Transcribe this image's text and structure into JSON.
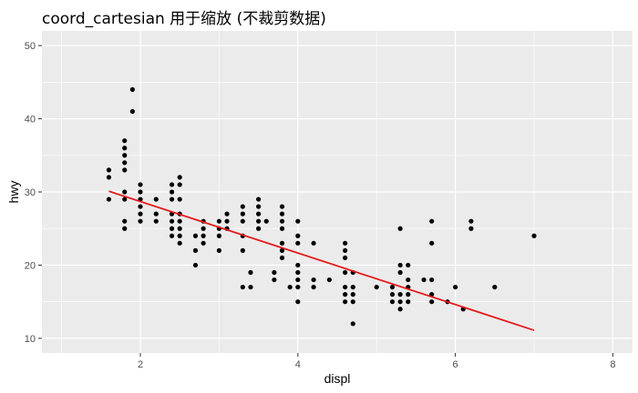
{
  "chart_data": {
    "type": "scatter",
    "title": "coord_cartesian 用于缩放 (不裁剪数据)",
    "xlabel": "displ",
    "ylabel": "hwy",
    "xlim": [
      0.75,
      8.25
    ],
    "ylim": [
      8,
      52
    ],
    "x_ticks": [
      2,
      4,
      6,
      8
    ],
    "y_ticks": [
      10,
      20,
      30,
      40,
      50
    ],
    "x_minor": [
      1,
      3,
      5,
      7
    ],
    "y_minor": [
      15,
      25,
      35,
      45
    ],
    "grid": true,
    "legend": "none",
    "point_color": "#000000",
    "panel_color": "#ebebeb",
    "grid_color": "#ffffff",
    "points": [
      {
        "x": 1.6,
        "y": 33
      },
      {
        "x": 1.6,
        "y": 32
      },
      {
        "x": 1.6,
        "y": 29
      },
      {
        "x": 1.8,
        "y": 37
      },
      {
        "x": 1.8,
        "y": 36
      },
      {
        "x": 1.8,
        "y": 35
      },
      {
        "x": 1.8,
        "y": 34
      },
      {
        "x": 1.8,
        "y": 33
      },
      {
        "x": 1.8,
        "y": 30
      },
      {
        "x": 1.8,
        "y": 29
      },
      {
        "x": 1.8,
        "y": 26
      },
      {
        "x": 1.8,
        "y": 25
      },
      {
        "x": 1.9,
        "y": 44
      },
      {
        "x": 1.9,
        "y": 41
      },
      {
        "x": 2.0,
        "y": 31
      },
      {
        "x": 2.0,
        "y": 30
      },
      {
        "x": 2.0,
        "y": 29
      },
      {
        "x": 2.0,
        "y": 28
      },
      {
        "x": 2.0,
        "y": 27
      },
      {
        "x": 2.0,
        "y": 26
      },
      {
        "x": 2.2,
        "y": 29
      },
      {
        "x": 2.2,
        "y": 27
      },
      {
        "x": 2.2,
        "y": 26
      },
      {
        "x": 2.4,
        "y": 31
      },
      {
        "x": 2.4,
        "y": 30
      },
      {
        "x": 2.4,
        "y": 29
      },
      {
        "x": 2.4,
        "y": 27
      },
      {
        "x": 2.4,
        "y": 26
      },
      {
        "x": 2.4,
        "y": 25
      },
      {
        "x": 2.4,
        "y": 24
      },
      {
        "x": 2.5,
        "y": 32
      },
      {
        "x": 2.5,
        "y": 31
      },
      {
        "x": 2.5,
        "y": 29
      },
      {
        "x": 2.5,
        "y": 27
      },
      {
        "x": 2.5,
        "y": 26
      },
      {
        "x": 2.5,
        "y": 25
      },
      {
        "x": 2.5,
        "y": 24
      },
      {
        "x": 2.5,
        "y": 23
      },
      {
        "x": 2.7,
        "y": 24
      },
      {
        "x": 2.7,
        "y": 22
      },
      {
        "x": 2.7,
        "y": 20
      },
      {
        "x": 2.8,
        "y": 26
      },
      {
        "x": 2.8,
        "y": 25
      },
      {
        "x": 2.8,
        "y": 24
      },
      {
        "x": 2.8,
        "y": 23
      },
      {
        "x": 3.0,
        "y": 26
      },
      {
        "x": 3.0,
        "y": 25
      },
      {
        "x": 3.0,
        "y": 24
      },
      {
        "x": 3.0,
        "y": 22
      },
      {
        "x": 3.1,
        "y": 27
      },
      {
        "x": 3.1,
        "y": 26
      },
      {
        "x": 3.1,
        "y": 25
      },
      {
        "x": 3.3,
        "y": 28
      },
      {
        "x": 3.3,
        "y": 27
      },
      {
        "x": 3.3,
        "y": 26
      },
      {
        "x": 3.3,
        "y": 24
      },
      {
        "x": 3.3,
        "y": 22
      },
      {
        "x": 3.3,
        "y": 17
      },
      {
        "x": 3.4,
        "y": 19
      },
      {
        "x": 3.4,
        "y": 17
      },
      {
        "x": 3.5,
        "y": 29
      },
      {
        "x": 3.5,
        "y": 28
      },
      {
        "x": 3.5,
        "y": 27
      },
      {
        "x": 3.5,
        "y": 26
      },
      {
        "x": 3.5,
        "y": 25
      },
      {
        "x": 3.6,
        "y": 26
      },
      {
        "x": 3.7,
        "y": 19
      },
      {
        "x": 3.7,
        "y": 18
      },
      {
        "x": 3.8,
        "y": 28
      },
      {
        "x": 3.8,
        "y": 27
      },
      {
        "x": 3.8,
        "y": 26
      },
      {
        "x": 3.8,
        "y": 25
      },
      {
        "x": 3.8,
        "y": 23
      },
      {
        "x": 3.8,
        "y": 22
      },
      {
        "x": 3.8,
        "y": 21
      },
      {
        "x": 3.9,
        "y": 17
      },
      {
        "x": 4.0,
        "y": 26
      },
      {
        "x": 4.0,
        "y": 24
      },
      {
        "x": 4.0,
        "y": 23
      },
      {
        "x": 4.0,
        "y": 20
      },
      {
        "x": 4.0,
        "y": 19
      },
      {
        "x": 4.0,
        "y": 18
      },
      {
        "x": 4.0,
        "y": 17
      },
      {
        "x": 4.0,
        "y": 15
      },
      {
        "x": 4.2,
        "y": 23
      },
      {
        "x": 4.2,
        "y": 18
      },
      {
        "x": 4.2,
        "y": 17
      },
      {
        "x": 4.4,
        "y": 18
      },
      {
        "x": 4.6,
        "y": 23
      },
      {
        "x": 4.6,
        "y": 22
      },
      {
        "x": 4.6,
        "y": 21
      },
      {
        "x": 4.6,
        "y": 19
      },
      {
        "x": 4.6,
        "y": 17
      },
      {
        "x": 4.6,
        "y": 16
      },
      {
        "x": 4.6,
        "y": 15
      },
      {
        "x": 4.7,
        "y": 19
      },
      {
        "x": 4.7,
        "y": 17
      },
      {
        "x": 4.7,
        "y": 16
      },
      {
        "x": 4.7,
        "y": 15
      },
      {
        "x": 4.7,
        "y": 12
      },
      {
        "x": 5.0,
        "y": 17
      },
      {
        "x": 5.2,
        "y": 17
      },
      {
        "x": 5.2,
        "y": 16
      },
      {
        "x": 5.2,
        "y": 15
      },
      {
        "x": 5.3,
        "y": 25
      },
      {
        "x": 5.3,
        "y": 20
      },
      {
        "x": 5.3,
        "y": 19
      },
      {
        "x": 5.3,
        "y": 16
      },
      {
        "x": 5.3,
        "y": 15
      },
      {
        "x": 5.3,
        "y": 14
      },
      {
        "x": 5.4,
        "y": 20
      },
      {
        "x": 5.4,
        "y": 18
      },
      {
        "x": 5.4,
        "y": 17
      },
      {
        "x": 5.4,
        "y": 16
      },
      {
        "x": 5.4,
        "y": 15
      },
      {
        "x": 5.6,
        "y": 18
      },
      {
        "x": 5.7,
        "y": 26
      },
      {
        "x": 5.7,
        "y": 23
      },
      {
        "x": 5.7,
        "y": 18
      },
      {
        "x": 5.7,
        "y": 16
      },
      {
        "x": 5.7,
        "y": 15
      },
      {
        "x": 5.9,
        "y": 15
      },
      {
        "x": 6.0,
        "y": 17
      },
      {
        "x": 6.1,
        "y": 14
      },
      {
        "x": 6.2,
        "y": 26
      },
      {
        "x": 6.2,
        "y": 25
      },
      {
        "x": 6.5,
        "y": 17
      },
      {
        "x": 7.0,
        "y": 24
      }
    ],
    "fit_line": {
      "color": "#e41a1c",
      "x": [
        1.6,
        7.0
      ],
      "y": [
        30.1,
        11.1
      ]
    }
  }
}
